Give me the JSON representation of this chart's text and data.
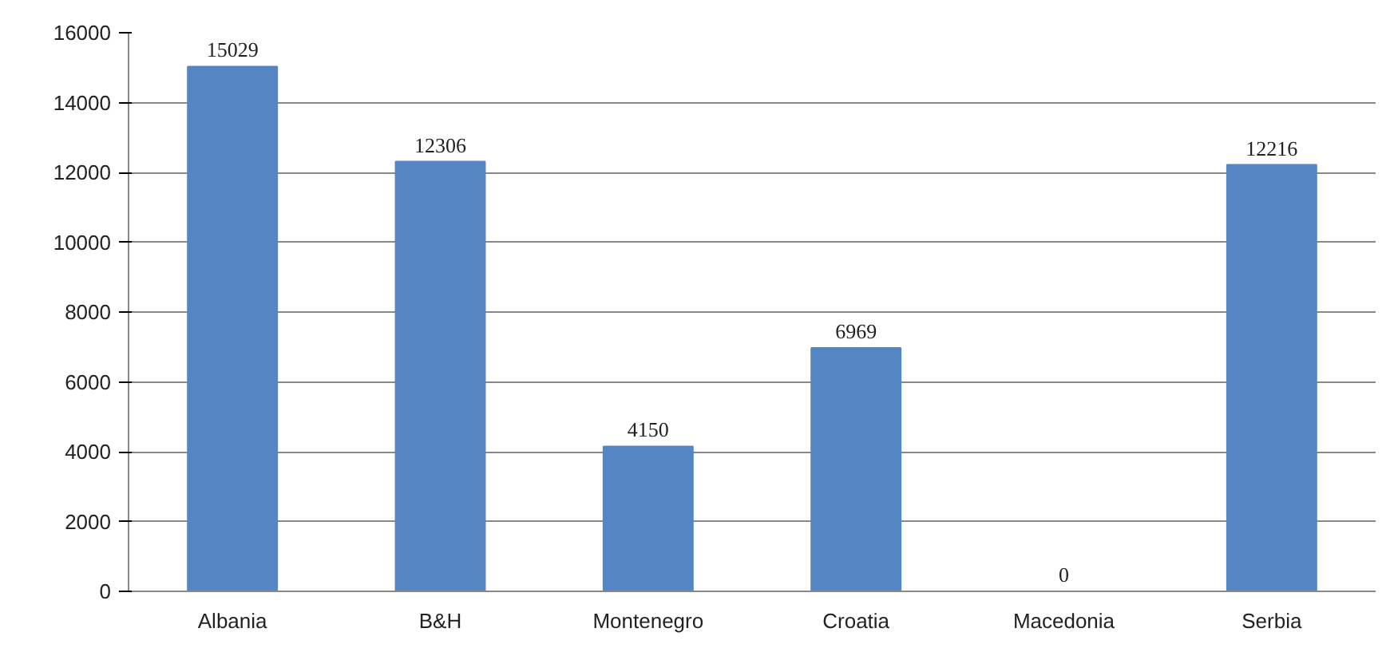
{
  "chart_data": {
    "type": "bar",
    "categories": [
      "Albania",
      "B&H",
      "Montenegro",
      "Croatia",
      "Macedonia",
      "Serbia"
    ],
    "values": [
      15029,
      12306,
      4150,
      6969,
      0,
      12216
    ],
    "color": "#5586c4",
    "ylim": [
      0,
      16000
    ],
    "yticks": [
      0,
      2000,
      4000,
      6000,
      8000,
      10000,
      12000,
      14000,
      16000
    ],
    "grid": "y",
    "data_labels": true
  }
}
